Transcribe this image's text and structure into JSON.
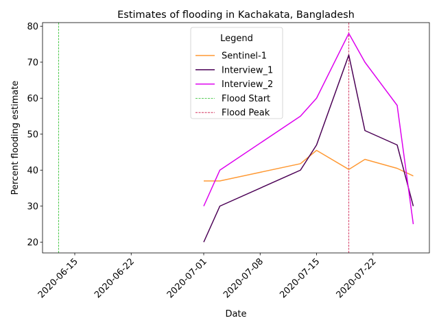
{
  "chart_data": {
    "type": "line",
    "title": "Estimates of flooding in Kachakata, Bangladesh",
    "xlabel": "Date",
    "ylabel": "Percent flooding estimate",
    "x_axis_type": "date",
    "xlim": [
      "2020-06-11",
      "2020-07-29"
    ],
    "ylim": [
      17,
      81
    ],
    "x_ticks": [
      "2020-06-15",
      "2020-06-22",
      "2020-07-01",
      "2020-07-08",
      "2020-07-15",
      "2020-07-22"
    ],
    "y_ticks": [
      20,
      30,
      40,
      50,
      60,
      70,
      80
    ],
    "grid": false,
    "legend": {
      "title": "Legend",
      "position": "top-center"
    },
    "series": [
      {
        "name": "Sentinel-1",
        "color": "#ff9933",
        "style": "solid",
        "points": [
          {
            "x": "2020-07-01",
            "y": 37
          },
          {
            "x": "2020-07-03",
            "y": 37
          },
          {
            "x": "2020-07-13",
            "y": 41.8
          },
          {
            "x": "2020-07-15",
            "y": 45.5
          },
          {
            "x": "2020-07-19",
            "y": 40.2
          },
          {
            "x": "2020-07-21",
            "y": 43
          },
          {
            "x": "2020-07-25",
            "y": 40.5
          },
          {
            "x": "2020-07-27",
            "y": 38.4
          }
        ]
      },
      {
        "name": "Interview_1",
        "color": "#4b0055",
        "style": "solid",
        "points": [
          {
            "x": "2020-07-01",
            "y": 20
          },
          {
            "x": "2020-07-03",
            "y": 30
          },
          {
            "x": "2020-07-13",
            "y": 40
          },
          {
            "x": "2020-07-15",
            "y": 47
          },
          {
            "x": "2020-07-19",
            "y": 72
          },
          {
            "x": "2020-07-21",
            "y": 51
          },
          {
            "x": "2020-07-25",
            "y": 47
          },
          {
            "x": "2020-07-27",
            "y": 30
          }
        ]
      },
      {
        "name": "Interview_2",
        "color": "#dd00ee",
        "style": "solid",
        "points": [
          {
            "x": "2020-07-01",
            "y": 30
          },
          {
            "x": "2020-07-03",
            "y": 40
          },
          {
            "x": "2020-07-13",
            "y": 55
          },
          {
            "x": "2020-07-15",
            "y": 60
          },
          {
            "x": "2020-07-19",
            "y": 78
          },
          {
            "x": "2020-07-21",
            "y": 70
          },
          {
            "x": "2020-07-25",
            "y": 58
          },
          {
            "x": "2020-07-27",
            "y": 25
          }
        ]
      }
    ],
    "vlines": [
      {
        "name": "Flood Start",
        "x": "2020-06-13",
        "color": "#22bb22",
        "style": "dashed"
      },
      {
        "name": "Flood Peak",
        "x": "2020-07-19",
        "color": "#cc1144",
        "style": "dashed"
      }
    ]
  }
}
